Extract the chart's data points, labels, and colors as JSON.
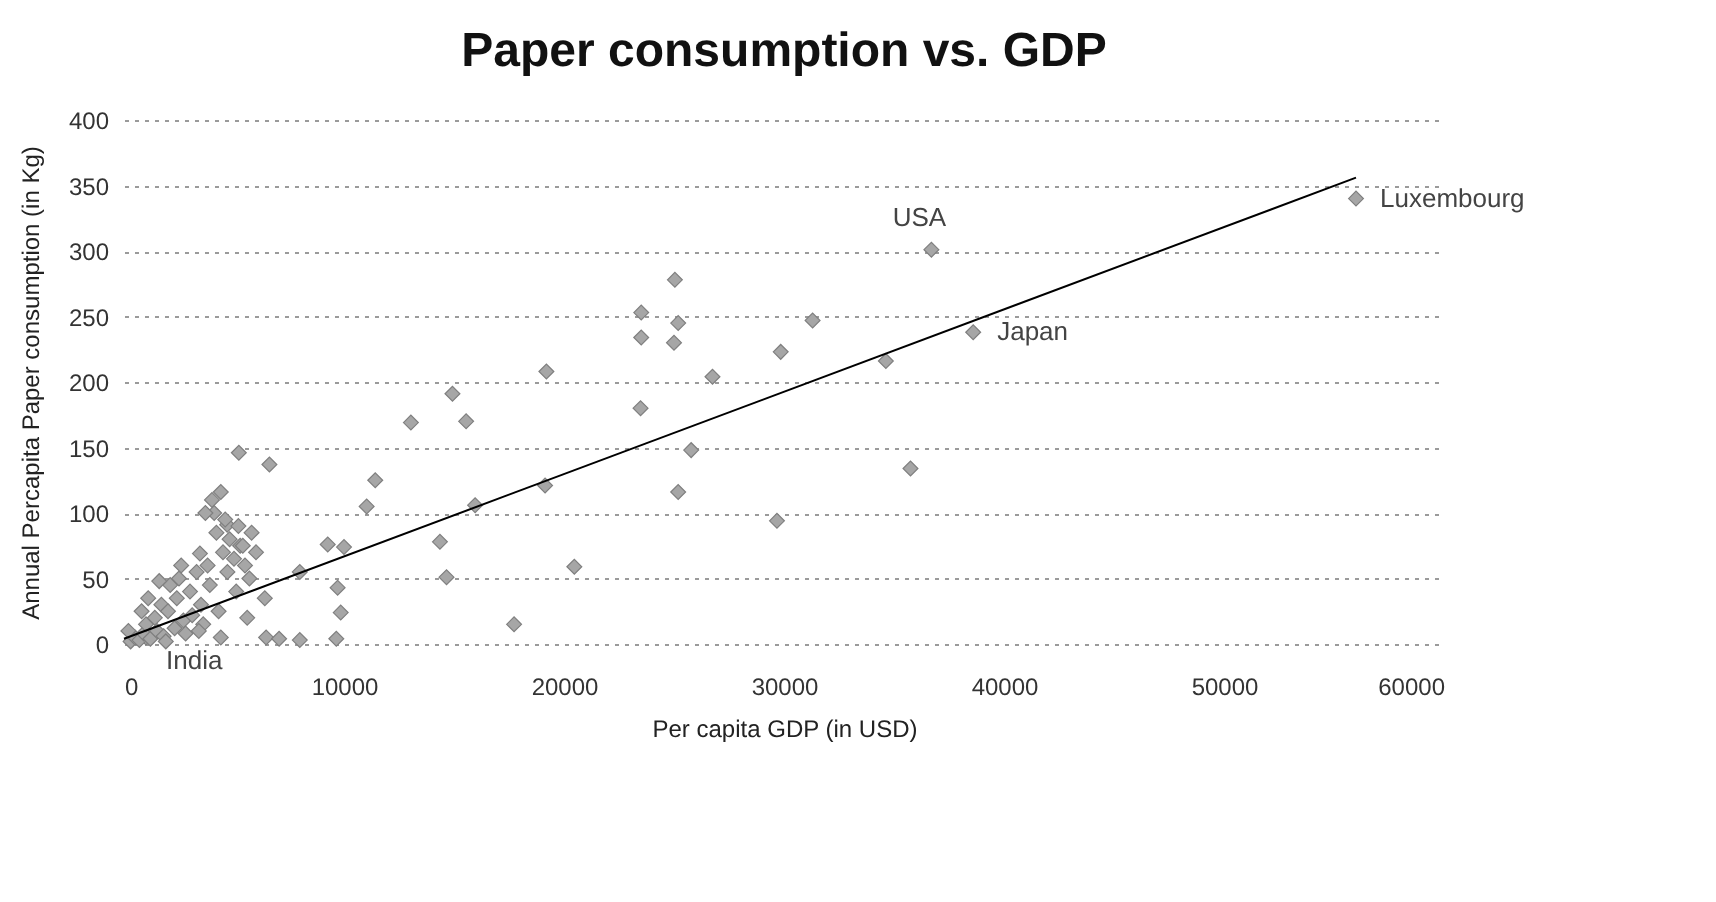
{
  "chart_data": {
    "type": "scatter",
    "title": "Paper consumption vs. GDP",
    "xlabel": "Per capita GDP (in USD)",
    "ylabel": "Annual Percapita Paper consumption (in Kg)",
    "xlim": [
      0,
      60000
    ],
    "xticks": [
      0,
      10000,
      20000,
      30000,
      40000,
      50000,
      60000
    ],
    "ylim": [
      0,
      400
    ],
    "yticks": [
      0,
      50,
      100,
      150,
      200,
      250,
      300,
      350,
      400
    ],
    "grid": "y",
    "annotations": [
      {
        "text": "USA",
        "x": 36700,
        "y": 301
      },
      {
        "text": "Luxembourg",
        "x": 56000,
        "y": 340
      },
      {
        "text": "Japan",
        "x": 38600,
        "y": 238
      },
      {
        "text": "India",
        "x": 1000,
        "y": 5
      }
    ],
    "series": [
      {
        "marker": "diamond",
        "color": "#a6a6a6",
        "x": [
          36700,
          56000,
          38600,
          1000,
          25040,
          23510,
          23510,
          25190,
          25000,
          31300,
          29850,
          26750,
          34630,
          23480,
          25780,
          25190,
          35750,
          29680,
          20470,
          19200,
          14930,
          15550,
          13040,
          11420,
          11030,
          19140,
          15960,
          14360,
          14660,
          17730,
          9260,
          10000,
          7990,
          9710,
          9850,
          9650,
          7990,
          6460,
          7050,
          6400,
          5220,
          6610,
          4400,
          4690,
          3450,
          5280,
          300,
          500,
          700,
          900,
          1000,
          1200,
          1400,
          1500,
          1700,
          1800,
          2000,
          2100,
          2300,
          2400,
          2500,
          2700,
          2800,
          3000,
          3100,
          3300,
          3500,
          3600,
          3800,
          3900,
          4000,
          4100,
          4200,
          4300,
          4500,
          4600,
          4700,
          4800,
          5000,
          5100,
          5200,
          5400,
          5500,
          5700,
          5800,
          6000,
          1100,
          1600,
          2600,
          3400,
          4400,
          5600,
          200,
          800,
          1900,
          3700
        ],
        "values": [
          301,
          340,
          238,
          5,
          278,
          253,
          234,
          245,
          230,
          247,
          223,
          204,
          216,
          180,
          148,
          116,
          134,
          94,
          59,
          208,
          191,
          170,
          169,
          125,
          105,
          121,
          106,
          78,
          51,
          15,
          76,
          74,
          55,
          43,
          24,
          4,
          3,
          5,
          4,
          35,
          146,
          137,
          116,
          91,
          69,
          75,
          2,
          5,
          3,
          8,
          15,
          4,
          20,
          10,
          30,
          6,
          25,
          45,
          12,
          35,
          50,
          18,
          8,
          40,
          22,
          55,
          30,
          15,
          60,
          45,
          110,
          100,
          85,
          25,
          70,
          95,
          55,
          80,
          65,
          40,
          90,
          75,
          60,
          50,
          85,
          70,
          35,
          48,
          60,
          10,
          5,
          20,
          10,
          25,
          2,
          100
        ]
      },
      {
        "type": "line",
        "color": "#000000",
        "x": [
          0,
          56000
        ],
        "values": [
          4,
          356
        ]
      }
    ]
  }
}
